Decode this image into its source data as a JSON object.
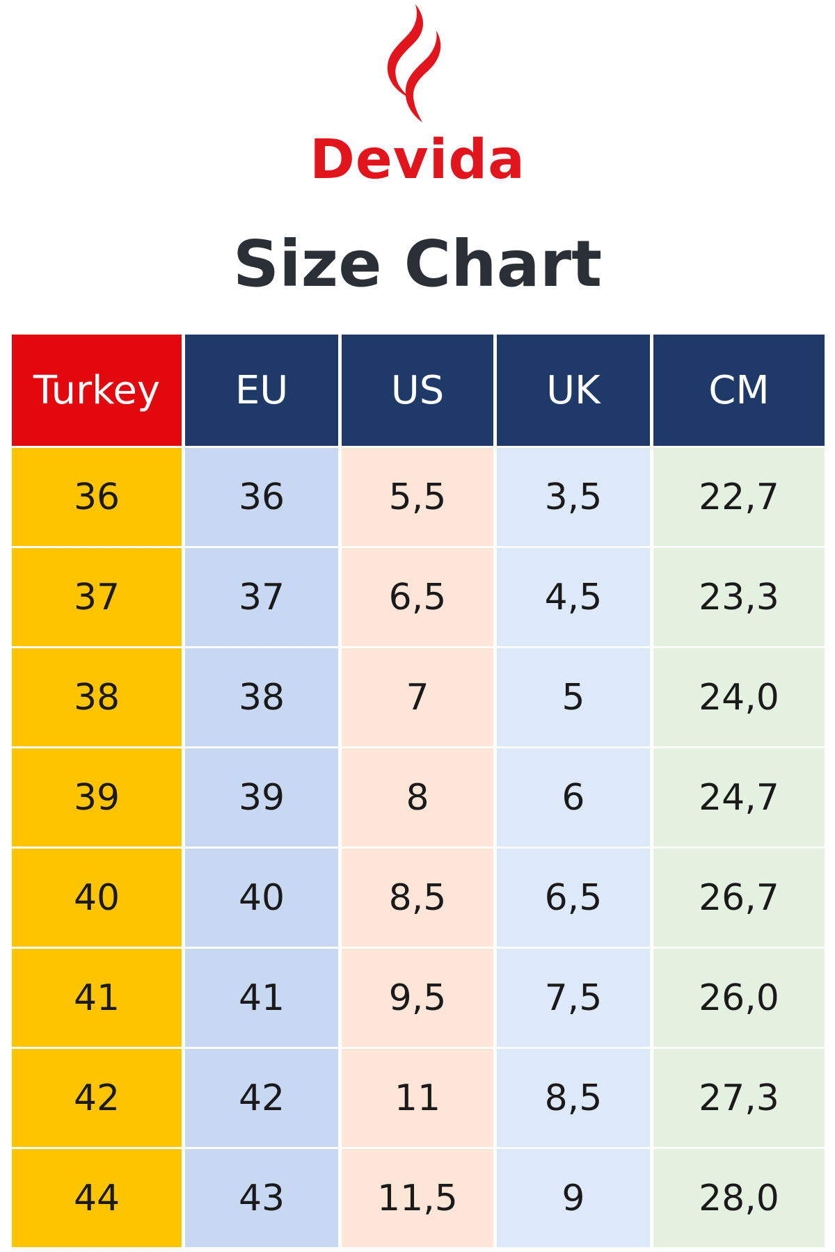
{
  "brand": {
    "name": "Devida",
    "logo_icon": "flame-icon",
    "color": "#e3151c"
  },
  "title": "Size Chart",
  "colors": {
    "header_turkey": "#e3070e",
    "header_other": "#1f3a68",
    "col_turkey": "#fec400",
    "col_eu": "#c8d8f3",
    "col_us": "#fde6d8",
    "col_uk": "#dde9f8",
    "col_cm": "#e5f1e0"
  },
  "table": {
    "headers": [
      "Turkey",
      "EU",
      "US",
      "UK",
      "CM"
    ],
    "rows": [
      [
        "36",
        "36",
        "5,5",
        "3,5",
        "22,7"
      ],
      [
        "37",
        "37",
        "6,5",
        "4,5",
        "23,3"
      ],
      [
        "38",
        "38",
        "7",
        "5",
        "24,0"
      ],
      [
        "39",
        "39",
        "8",
        "6",
        "24,7"
      ],
      [
        "40",
        "40",
        "8,5",
        "6,5",
        "26,7"
      ],
      [
        "41",
        "41",
        "9,5",
        "7,5",
        "26,0"
      ],
      [
        "42",
        "42",
        "11",
        "8,5",
        "27,3"
      ],
      [
        "44",
        "43",
        "11,5",
        "9",
        "28,0"
      ]
    ]
  }
}
